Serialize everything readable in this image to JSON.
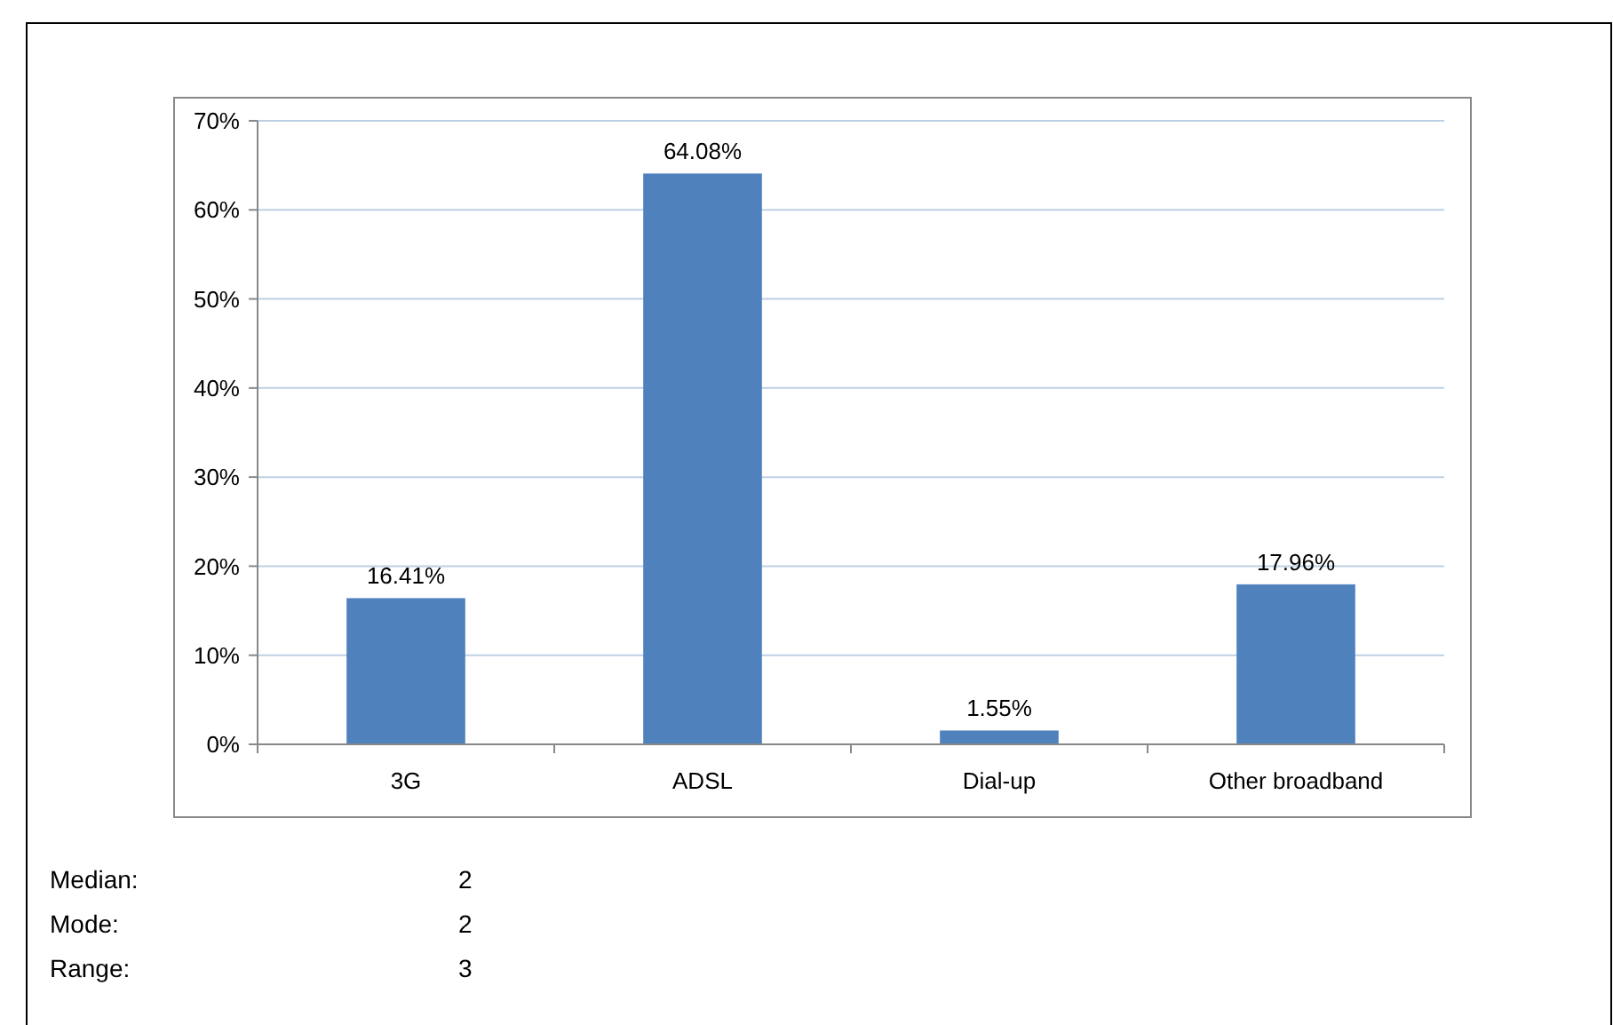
{
  "chart_data": {
    "type": "bar",
    "categories": [
      "3G",
      "ADSL",
      "Dial-up",
      "Other broadband"
    ],
    "values": [
      16.41,
      64.08,
      1.55,
      17.96
    ],
    "color": "#4f81bd",
    "value_labels": [
      "16.41%",
      "64.08%",
      "1.55%",
      "17.96%"
    ],
    "ylim": [
      0,
      70
    ],
    "yticks": [
      {
        "value": 0,
        "label": "0%"
      },
      {
        "value": 10,
        "label": "10%"
      },
      {
        "value": 20,
        "label": "20%"
      },
      {
        "value": 30,
        "label": "30%"
      },
      {
        "value": 40,
        "label": "40%"
      },
      {
        "value": 50,
        "label": "50%"
      },
      {
        "value": 60,
        "label": "60%"
      },
      {
        "value": 70,
        "label": "70%"
      }
    ],
    "grid": "y",
    "annotations": [
      "Median:",
      "2",
      "Mode:",
      "2",
      "Range:",
      "3"
    ]
  }
}
